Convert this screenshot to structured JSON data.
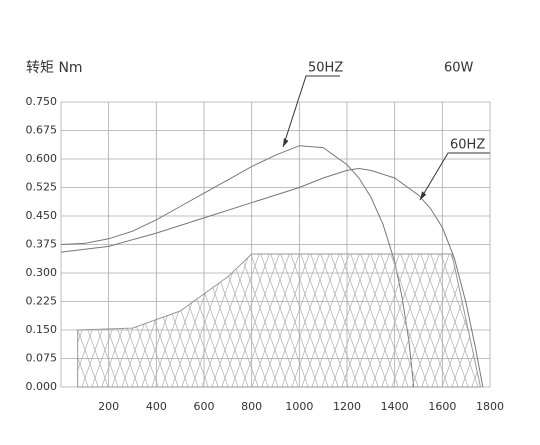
{
  "chart_data": {
    "type": "line",
    "y_label": "转矩 Nm",
    "note": "60W",
    "xlim": [
      0,
      1800
    ],
    "xticks": [
      200,
      400,
      600,
      800,
      1000,
      1200,
      1400,
      1600,
      1800
    ],
    "ylim": [
      0,
      0.75
    ],
    "yticks": [
      {
        "value": 0,
        "label": "0.000"
      },
      0.075,
      {
        "value": 0.15,
        "label": "0.150"
      },
      0.225,
      {
        "value": 0.3,
        "label": "0.300"
      },
      0.375,
      {
        "value": 0.45,
        "label": "0.450"
      },
      0.525,
      {
        "value": 0.6,
        "label": "0.600"
      },
      0.675,
      {
        "value": 0.75,
        "label": "0.750"
      }
    ],
    "grid": true,
    "series": [
      {
        "name": "50HZ",
        "color": "#777777",
        "x": [
          0,
          100,
          200,
          300,
          400,
          500,
          600,
          700,
          800,
          900,
          1000,
          1100,
          1200,
          1250,
          1300,
          1350,
          1400,
          1430,
          1460,
          1480
        ],
        "values": [
          0.375,
          0.378,
          0.39,
          0.41,
          0.44,
          0.475,
          0.51,
          0.545,
          0.58,
          0.61,
          0.635,
          0.63,
          0.585,
          0.55,
          0.5,
          0.43,
          0.33,
          0.24,
          0.12,
          0
        ]
      },
      {
        "name": "60HZ",
        "color": "#777777",
        "x": [
          0,
          200,
          400,
          600,
          800,
          1000,
          1100,
          1200,
          1250,
          1300,
          1400,
          1500,
          1550,
          1600,
          1650,
          1700,
          1740,
          1770
        ],
        "values": [
          0.355,
          0.37,
          0.405,
          0.445,
          0.485,
          0.525,
          0.55,
          0.57,
          0.575,
          0.57,
          0.55,
          0.505,
          0.47,
          0.42,
          0.34,
          0.22,
          0.1,
          0
        ]
      },
      {
        "color": "#999999",
        "hatched": true,
        "x": [
          70,
          70,
          300,
          500,
          700,
          800,
          1640,
          1760
        ],
        "values": [
          0,
          0.15,
          0.155,
          0.2,
          0.29,
          0.35,
          0.35,
          0
        ]
      }
    ]
  }
}
